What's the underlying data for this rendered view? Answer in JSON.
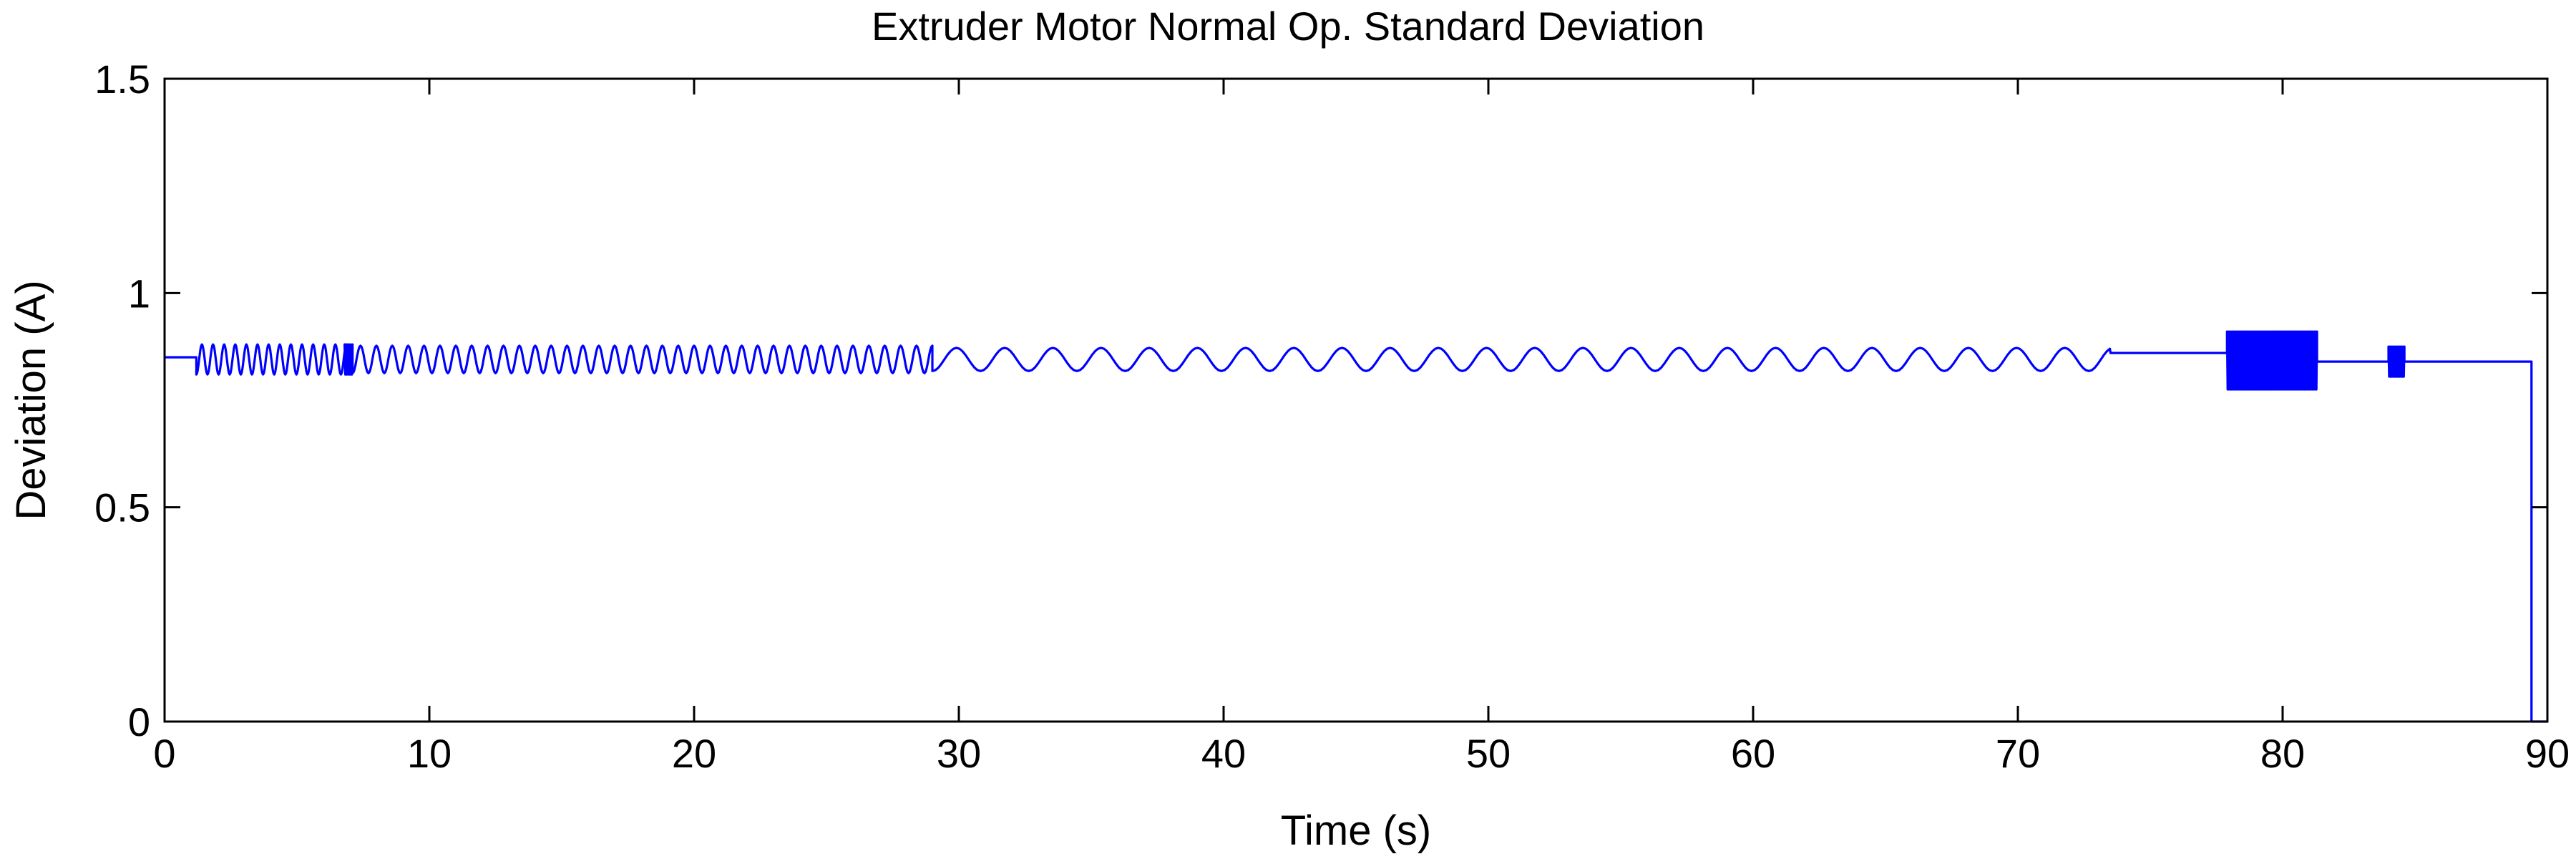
{
  "chart_data": {
    "type": "line",
    "title": "Extruder Motor Normal Op. Standard Deviation",
    "xlabel": "Time (s)",
    "ylabel": "Deviation (A)",
    "xlim": [
      0,
      90
    ],
    "ylim": [
      0,
      1.5
    ],
    "xticks": [
      "0",
      "10",
      "20",
      "30",
      "40",
      "50",
      "60",
      "70",
      "80",
      "90"
    ],
    "yticks": [
      "0",
      "0.5",
      "1",
      "1.5"
    ],
    "grid": false,
    "legend": "none",
    "series": [
      {
        "color": "#0000ff",
        "segments": [
          {
            "kind": "flat",
            "x": [
              0,
              1.2
            ],
            "y": 0.85
          },
          {
            "kind": "oscillation",
            "x": [
              1.2,
              7.0
            ],
            "center": 0.845,
            "amplitude": 0.035,
            "period": 0.42
          },
          {
            "kind": "burst",
            "x": [
              6.8,
              7.1
            ],
            "low": 0.81,
            "high": 0.88
          },
          {
            "kind": "oscillation",
            "x": [
              7.1,
              29.0
            ],
            "center": 0.845,
            "amplitude": 0.032,
            "period": 0.6
          },
          {
            "kind": "oscillation",
            "x": [
              29.0,
              73.5
            ],
            "center": 0.845,
            "amplitude": 0.027,
            "period": 1.82
          },
          {
            "kind": "flat",
            "x": [
              73.5,
              77.9
            ],
            "y": 0.86
          },
          {
            "kind": "burst",
            "x": [
              77.9,
              81.3
            ],
            "low": 0.775,
            "high": 0.91
          },
          {
            "kind": "flat",
            "x": [
              81.3,
              84.0
            ],
            "y": 0.84
          },
          {
            "kind": "burst",
            "x": [
              84.0,
              84.6
            ],
            "low": 0.805,
            "high": 0.875
          },
          {
            "kind": "flat",
            "x": [
              84.6,
              89.4
            ],
            "y": 0.84
          },
          {
            "kind": "drop",
            "x": [
              89.4,
              89.4
            ],
            "y": [
              0.84,
              0.0
            ]
          },
          {
            "kind": "flat",
            "x": [
              89.4,
              90
            ],
            "y": 0.0
          }
        ]
      }
    ]
  }
}
